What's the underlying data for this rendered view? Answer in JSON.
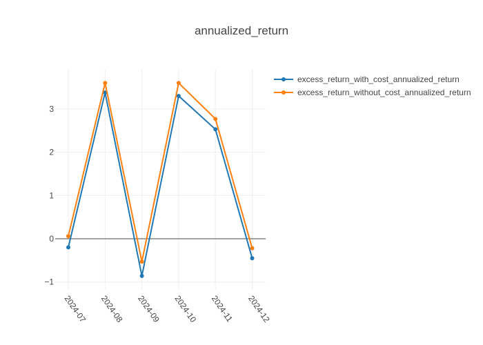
{
  "chart_data": {
    "type": "line",
    "title": "annualized_return",
    "xlabel": "",
    "ylabel": "",
    "categories": [
      "2024-07",
      "2024-08",
      "2024-09",
      "2024-10",
      "2024-11",
      "2024-12"
    ],
    "series": [
      {
        "name": "excess_return_with_cost_annualized_return",
        "color": "#1f77b4",
        "values": [
          -0.2,
          3.38,
          -0.86,
          3.3,
          2.53,
          -0.45
        ]
      },
      {
        "name": "excess_return_without_cost_annualized_return",
        "color": "#ff7f0e",
        "values": [
          0.06,
          3.6,
          -0.53,
          3.6,
          2.77,
          -0.22
        ]
      }
    ],
    "ylim": [
      -1.25,
      3.9
    ],
    "yticks": [
      3,
      2,
      1,
      0,
      -1
    ],
    "ytick_labels": [
      "3",
      "2",
      "1",
      "0",
      "−1"
    ],
    "grid": true,
    "legend_position": "top-right"
  }
}
